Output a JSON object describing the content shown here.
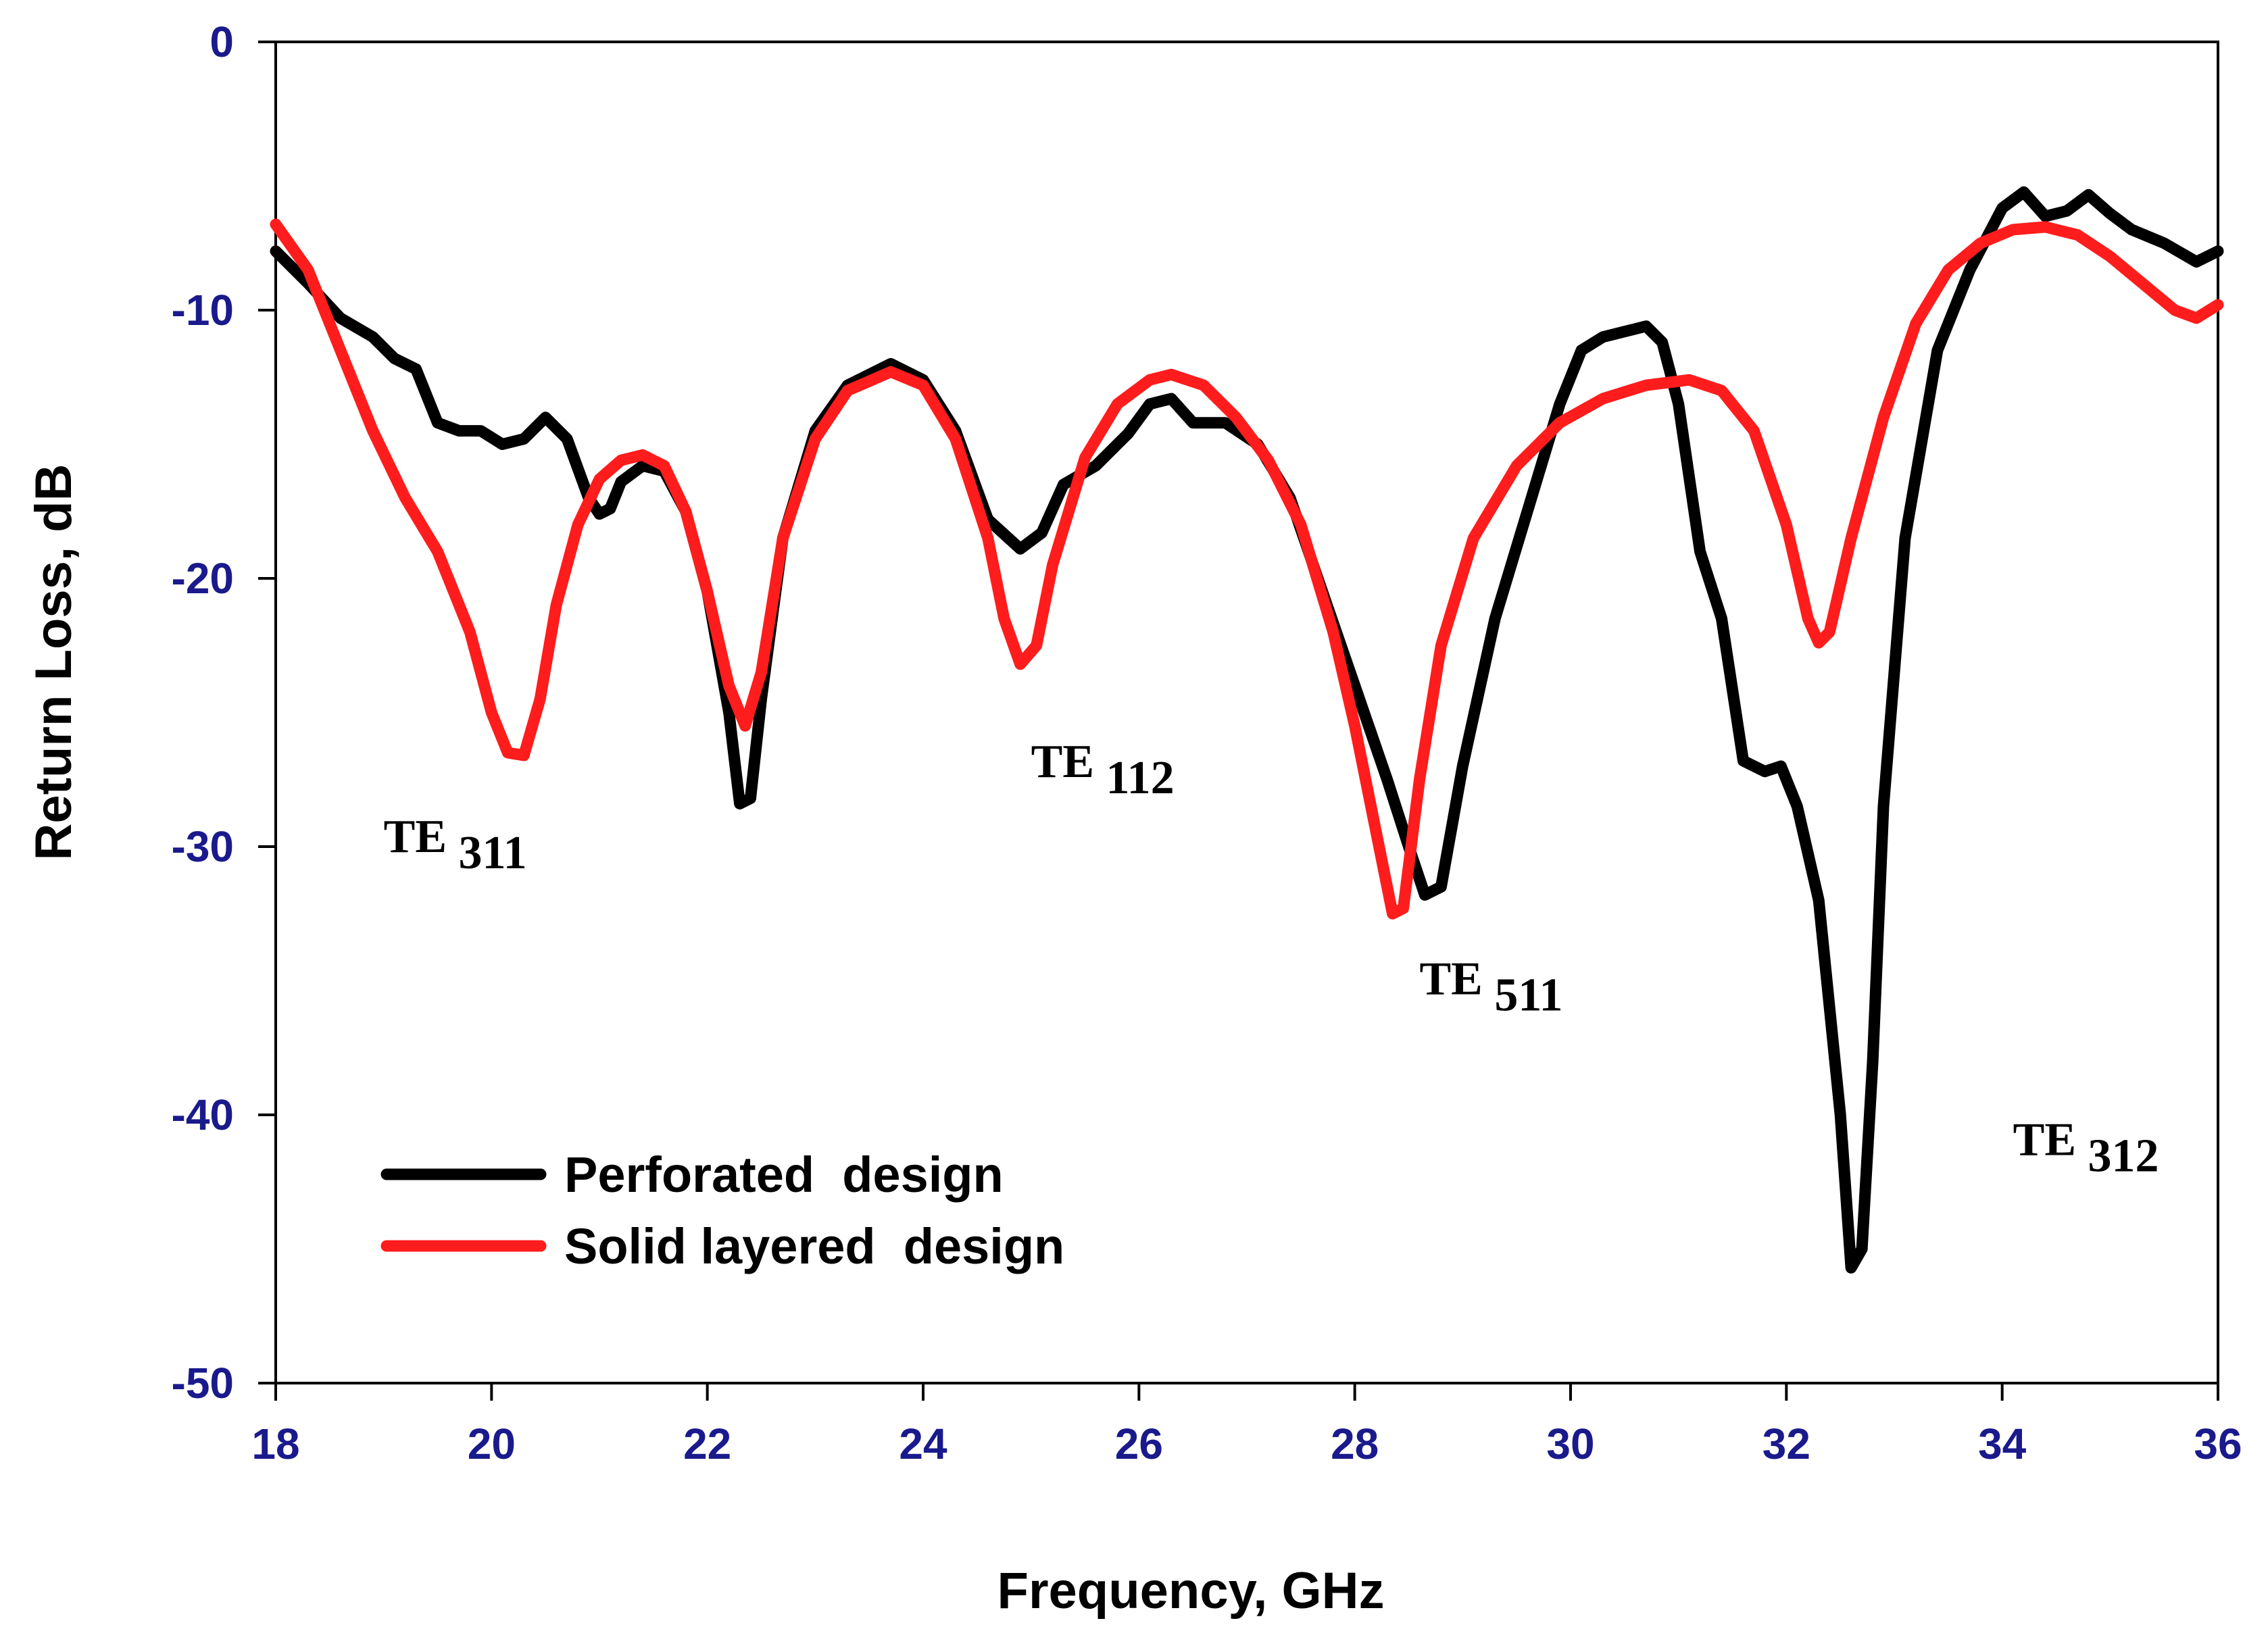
{
  "chart_data": {
    "type": "line",
    "title": "",
    "xlabel": "Frequency, GHz",
    "ylabel": "Return Loss, dB",
    "xlim": [
      18,
      36
    ],
    "ylim": [
      -50,
      0
    ],
    "xticks": [
      "18",
      "20",
      "22",
      "24",
      "26",
      "28",
      "30",
      "32",
      "34",
      "36"
    ],
    "yticks": [
      "0",
      "-10",
      "-20",
      "-30",
      "-40",
      "-50"
    ],
    "grid": false,
    "legend_position": "bottom-left",
    "colors": {
      "axis": "#000000",
      "tick_text": "#1a1a8c"
    },
    "series": [
      {
        "name": "Perforated  design",
        "color": "#000000",
        "x": [
          18,
          18.3,
          18.6,
          18.9,
          19.1,
          19.3,
          19.5,
          19.7,
          19.9,
          20.1,
          20.3,
          20.5,
          20.7,
          20.9,
          21.0,
          21.1,
          21.2,
          21.4,
          21.6,
          21.8,
          22.0,
          22.2,
          22.3,
          22.4,
          22.5,
          22.7,
          23.0,
          23.3,
          23.7,
          24.0,
          24.3,
          24.6,
          24.9,
          25.1,
          25.3,
          25.6,
          25.9,
          26.1,
          26.3,
          26.5,
          26.8,
          27.1,
          27.4,
          27.7,
          28.0,
          28.3,
          28.5,
          28.65,
          28.8,
          29.0,
          29.3,
          29.6,
          29.9,
          30.1,
          30.3,
          30.5,
          30.7,
          30.85,
          31.0,
          31.2,
          31.4,
          31.6,
          31.8,
          31.95,
          32.1,
          32.3,
          32.5,
          32.6,
          32.7,
          32.8,
          32.9,
          33.1,
          33.4,
          33.7,
          34.0,
          34.2,
          34.4,
          34.6,
          34.8,
          35.0,
          35.2,
          35.5,
          35.8,
          36.0
        ],
        "y": [
          -7.8,
          -9.0,
          -10.3,
          -11.0,
          -11.8,
          -12.2,
          -14.2,
          -14.5,
          -14.5,
          -15.0,
          -14.8,
          -14.0,
          -14.8,
          -17.0,
          -17.6,
          -17.4,
          -16.4,
          -15.8,
          -16.0,
          -17.5,
          -20.5,
          -25.0,
          -28.4,
          -28.2,
          -24.5,
          -18.5,
          -14.5,
          -12.8,
          -12.0,
          -12.6,
          -14.5,
          -17.8,
          -18.9,
          -18.3,
          -16.5,
          -15.8,
          -14.6,
          -13.5,
          -13.3,
          -14.2,
          -14.2,
          -15.0,
          -17.0,
          -20.5,
          -24.0,
          -27.5,
          -30.0,
          -31.8,
          -31.5,
          -27.0,
          -21.5,
          -17.5,
          -13.5,
          -11.5,
          -11.0,
          -10.8,
          -10.6,
          -11.2,
          -13.5,
          -19.0,
          -21.5,
          -26.8,
          -27.2,
          -27.0,
          -28.5,
          -32.0,
          -40.0,
          -45.7,
          -45.0,
          -38.0,
          -28.5,
          -18.5,
          -11.5,
          -8.5,
          -6.2,
          -5.6,
          -6.5,
          -6.3,
          -5.7,
          -6.4,
          -7.0,
          -7.5,
          -8.2,
          -7.8
        ]
      },
      {
        "name": "Solid layered  design",
        "color": "#ff1c1c",
        "x": [
          18,
          18.3,
          18.6,
          18.9,
          19.2,
          19.5,
          19.8,
          20.0,
          20.15,
          20.3,
          20.45,
          20.6,
          20.8,
          21.0,
          21.2,
          21.4,
          21.6,
          21.8,
          22.0,
          22.2,
          22.35,
          22.5,
          22.7,
          23.0,
          23.3,
          23.7,
          24.0,
          24.3,
          24.6,
          24.75,
          24.9,
          25.05,
          25.2,
          25.5,
          25.8,
          26.1,
          26.3,
          26.6,
          26.9,
          27.2,
          27.5,
          27.8,
          28.0,
          28.2,
          28.35,
          28.45,
          28.6,
          28.8,
          29.1,
          29.5,
          29.9,
          30.3,
          30.7,
          31.1,
          31.4,
          31.7,
          32.0,
          32.2,
          32.3,
          32.4,
          32.6,
          32.9,
          33.2,
          33.5,
          33.8,
          34.1,
          34.4,
          34.7,
          35.0,
          35.3,
          35.6,
          35.8,
          36.0
        ],
        "y": [
          -6.8,
          -8.5,
          -11.5,
          -14.5,
          -17.0,
          -19.0,
          -22.0,
          -25.0,
          -26.5,
          -26.6,
          -24.5,
          -21.0,
          -18.0,
          -16.3,
          -15.6,
          -15.4,
          -15.8,
          -17.5,
          -20.5,
          -24.0,
          -25.5,
          -23.5,
          -18.5,
          -14.8,
          -13.0,
          -12.3,
          -12.8,
          -14.8,
          -18.5,
          -21.5,
          -23.2,
          -22.5,
          -19.5,
          -15.5,
          -13.5,
          -12.6,
          -12.4,
          -12.8,
          -14.0,
          -15.6,
          -18.0,
          -22.0,
          -25.5,
          -29.5,
          -32.5,
          -32.3,
          -27.5,
          -22.5,
          -18.5,
          -15.8,
          -14.2,
          -13.3,
          -12.8,
          -12.6,
          -13.0,
          -14.5,
          -18.0,
          -21.5,
          -22.4,
          -22.0,
          -18.5,
          -14.0,
          -10.5,
          -8.5,
          -7.5,
          -7.0,
          -6.9,
          -7.2,
          -8.0,
          -9.0,
          -10.0,
          -10.3,
          -9.8
        ]
      }
    ],
    "annotations": [
      {
        "main": "TE",
        "sub": "311",
        "x": 19.0,
        "y": -30.2
      },
      {
        "main": "TE",
        "sub": "112",
        "x": 25.0,
        "y": -27.4
      },
      {
        "main": "TE",
        "sub": "511",
        "x": 28.6,
        "y": -35.5
      },
      {
        "main": "TE",
        "sub": "312",
        "x": 34.1,
        "y": -41.5
      }
    ]
  }
}
